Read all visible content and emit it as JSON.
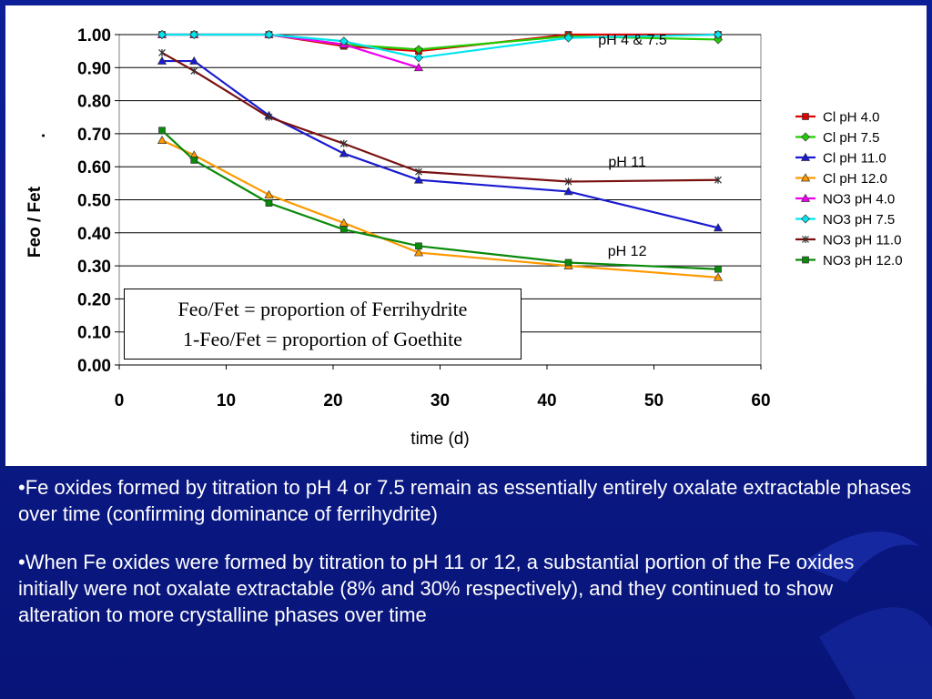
{
  "colors": {
    "background": "#0a1a8c",
    "panel": "#ffffff",
    "text_light": "#ffffff"
  },
  "chart_data": {
    "type": "line",
    "xlabel": "time (d)",
    "ylabel": "Feo / Fet",
    "ylabel_extra": ".",
    "xlim": [
      0,
      60
    ],
    "ylim": [
      0,
      1.0
    ],
    "xticks": [
      "0",
      "10",
      "20",
      "30",
      "40",
      "50",
      "60"
    ],
    "yticks": [
      "0.00",
      "0.10",
      "0.20",
      "0.30",
      "0.40",
      "0.50",
      "0.60",
      "0.70",
      "0.80",
      "0.90",
      "1.00"
    ],
    "grid": "horizontal",
    "legend_position": "right",
    "annotations": [
      {
        "text": "pH  4 & 7.5",
        "x": 48,
        "y": 0.97
      },
      {
        "text": "pH 11",
        "x": 47.5,
        "y": 0.6
      },
      {
        "text": "pH  12",
        "x": 47.5,
        "y": 0.33
      }
    ],
    "series": [
      {
        "name": "Cl pH 4.0",
        "color": "#e00000",
        "marker": "square",
        "x": [
          4,
          7,
          14,
          21,
          28,
          42,
          56
        ],
        "y": [
          1.0,
          1.0,
          1.0,
          0.965,
          0.95,
          1.0,
          1.0
        ]
      },
      {
        "name": "Cl pH 7.5",
        "color": "#22cc00",
        "marker": "diamond",
        "x": [
          4,
          7,
          14,
          21,
          28,
          42,
          56
        ],
        "y": [
          1.0,
          1.0,
          1.0,
          0.97,
          0.955,
          0.995,
          0.985
        ]
      },
      {
        "name": "Cl pH 11.0",
        "color": "#1a1ad0",
        "marker": "triangle",
        "x": [
          4,
          7,
          14,
          21,
          28,
          42,
          56
        ],
        "y": [
          0.92,
          0.92,
          0.755,
          0.64,
          0.56,
          0.525,
          0.415
        ]
      },
      {
        "name": "Cl pH 12.0",
        "color": "#ff9900",
        "marker": "triangle",
        "x": [
          4,
          7,
          14,
          21,
          28,
          42,
          56
        ],
        "y": [
          0.68,
          0.635,
          0.515,
          0.43,
          0.34,
          0.3,
          0.265
        ]
      },
      {
        "name": "NO3 pH 4.0",
        "color": "#ee00ee",
        "marker": "triangle",
        "x": [
          4,
          7,
          14,
          21,
          28
        ],
        "y": [
          1.0,
          1.0,
          1.0,
          0.97,
          0.9
        ]
      },
      {
        "name": "NO3 pH 7.5",
        "color": "#00e5ee",
        "marker": "diamond",
        "x": [
          4,
          7,
          14,
          21,
          28,
          42,
          56
        ],
        "y": [
          1.0,
          1.0,
          1.0,
          0.98,
          0.93,
          0.99,
          1.0
        ]
      },
      {
        "name": "NO3 pH 11.0",
        "color": "#7a1010",
        "marker": "star",
        "x": [
          4,
          7,
          14,
          21,
          28,
          42,
          56
        ],
        "y": [
          0.945,
          0.89,
          0.75,
          0.67,
          0.585,
          0.555,
          0.56
        ]
      },
      {
        "name": "NO3 pH 12.0",
        "color": "#0a8a0a",
        "marker": "square",
        "x": [
          4,
          7,
          14,
          21,
          28,
          42,
          56
        ],
        "y": [
          0.71,
          0.62,
          0.49,
          0.41,
          0.36,
          0.31,
          0.29
        ]
      }
    ]
  },
  "note": {
    "line1": "Feo/Fet = proportion of Ferrihydrite",
    "line2": "1-Feo/Fet = proportion of Goethite"
  },
  "bullets": [
    "•Fe oxides formed by titration to pH 4 or 7.5 remain as essentially entirely oxalate extractable phases over time (confirming dominance of ferrihydrite)",
    "•When Fe oxides were formed by titration to pH 11 or 12, a substantial portion of the Fe oxides initially were not oxalate extractable (8% and 30% respectively), and they continued to show alteration to more crystalline phases over time"
  ]
}
